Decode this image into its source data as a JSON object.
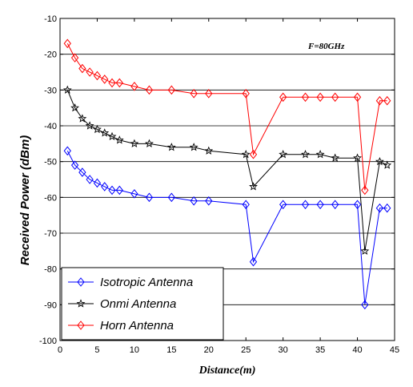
{
  "chart_data": {
    "type": "line",
    "xlabel": "Distance(m)",
    "ylabel": "Received Power (dBm)",
    "annotation": "F=80GHz",
    "xlim": [
      0,
      45
    ],
    "ylim": [
      -100,
      -10
    ],
    "xticks": [
      "0",
      "5",
      "10",
      "15",
      "20",
      "25",
      "30",
      "35",
      "40",
      "45"
    ],
    "yticks": [
      "-100",
      "-90",
      "-80",
      "-70",
      "-60",
      "-50",
      "-40",
      "-30",
      "-20",
      "-10"
    ],
    "grid": "horizontal",
    "legend_position": "bottom-left",
    "series": [
      {
        "name": "Isotropic Antenna",
        "color": "#0000ff",
        "marker": "diamond",
        "x": [
          1,
          2,
          3,
          4,
          5,
          6,
          7,
          8,
          10,
          12,
          15,
          18,
          20,
          25,
          26,
          30,
          33,
          35,
          37,
          40,
          41,
          43,
          44
        ],
        "values": [
          -47,
          -51,
          -53,
          -55,
          -56,
          -57,
          -58,
          -58,
          -59,
          -60,
          -60,
          -61,
          -61,
          -62,
          -78,
          -62,
          -62,
          -62,
          -62,
          -62,
          -90,
          -63,
          -63
        ]
      },
      {
        "name": "Onmi Antenna",
        "color": "#000000",
        "marker": "star",
        "x": [
          1,
          2,
          3,
          4,
          5,
          6,
          7,
          8,
          10,
          12,
          15,
          18,
          20,
          25,
          26,
          30,
          33,
          35,
          37,
          40,
          41,
          43,
          44
        ],
        "values": [
          -30,
          -35,
          -38,
          -40,
          -41,
          -42,
          -43,
          -44,
          -45,
          -45,
          -46,
          -46,
          -47,
          -48,
          -57,
          -48,
          -48,
          -48,
          -49,
          -49,
          -75,
          -50,
          -51
        ]
      },
      {
        "name": "Horn Antenna",
        "color": "#ff0000",
        "marker": "diamond",
        "x": [
          1,
          2,
          3,
          4,
          5,
          6,
          7,
          8,
          10,
          12,
          15,
          18,
          20,
          25,
          26,
          30,
          33,
          35,
          37,
          40,
          41,
          43,
          44
        ],
        "values": [
          -17,
          -21,
          -24,
          -25,
          -26,
          -27,
          -28,
          -28,
          -29,
          -30,
          -30,
          -31,
          -31,
          -31,
          -48,
          -32,
          -32,
          -32,
          -32,
          -32,
          -58,
          -33,
          -33
        ]
      }
    ]
  }
}
